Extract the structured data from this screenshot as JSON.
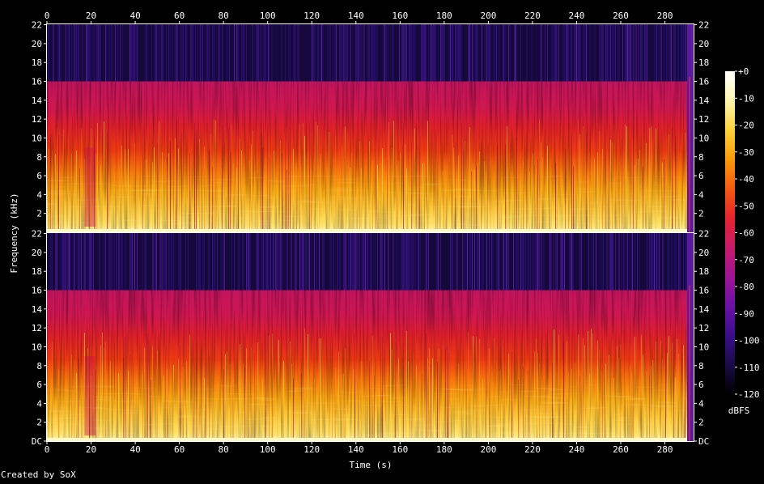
{
  "chart_data": {
    "type": "heatmap",
    "title": "",
    "xlabel": "Time (s)",
    "ylabel": "Frequency (kHz)",
    "xlim": [
      0,
      293
    ],
    "x_ticks": [
      0,
      20,
      40,
      60,
      80,
      100,
      120,
      140,
      160,
      180,
      200,
      220,
      240,
      260,
      280
    ],
    "channels": [
      {
        "ylim": [
          0,
          22.05
        ],
        "y_ticks": [
          {
            "v": 22,
            "label": "22"
          },
          {
            "v": 20,
            "label": "20"
          },
          {
            "v": 18,
            "label": "18"
          },
          {
            "v": 16,
            "label": "16"
          },
          {
            "v": 14,
            "label": "14"
          },
          {
            "v": 12,
            "label": "12"
          },
          {
            "v": 10,
            "label": "10"
          },
          {
            "v": 8,
            "label": "8"
          },
          {
            "v": 6,
            "label": "6"
          },
          {
            "v": 4,
            "label": "4"
          },
          {
            "v": 2,
            "label": "2"
          }
        ]
      },
      {
        "ylim": [
          0,
          22.05
        ],
        "y_ticks": [
          {
            "v": 22,
            "label": "22"
          },
          {
            "v": 20,
            "label": "20"
          },
          {
            "v": 18,
            "label": "18"
          },
          {
            "v": 16,
            "label": "16"
          },
          {
            "v": 14,
            "label": "14"
          },
          {
            "v": 12,
            "label": "12"
          },
          {
            "v": 10,
            "label": "10"
          },
          {
            "v": 8,
            "label": "8"
          },
          {
            "v": 6,
            "label": "6"
          },
          {
            "v": 4,
            "label": "4"
          },
          {
            "v": 2,
            "label": "2"
          },
          {
            "v": 0,
            "label": "DC"
          }
        ]
      }
    ],
    "cutoff_khz": 16,
    "colorbar": {
      "label": "dBFS",
      "range": [
        -120,
        0
      ],
      "ticks": [
        {
          "v": 0,
          "label": "+0"
        },
        {
          "v": -10,
          "label": "-10"
        },
        {
          "v": -20,
          "label": "-20"
        },
        {
          "v": -30,
          "label": "-30"
        },
        {
          "v": -40,
          "label": "-40"
        },
        {
          "v": -50,
          "label": "-50"
        },
        {
          "v": -60,
          "label": "-60"
        },
        {
          "v": -70,
          "label": "-70"
        },
        {
          "v": -80,
          "label": "-80"
        },
        {
          "v": -90,
          "label": "-90"
        },
        {
          "v": -100,
          "label": "-100"
        },
        {
          "v": -110,
          "label": "-110"
        },
        {
          "v": -120,
          "label": "-120"
        }
      ],
      "colors": [
        "#000000",
        "#1a0c47",
        "#3a0d8a",
        "#6b10a6",
        "#9e1596",
        "#c81a6a",
        "#e6232e",
        "#f55a10",
        "#fb9a0a",
        "#fdd23a",
        "#fff6b0",
        "#ffffff"
      ]
    },
    "credit": "Created by SoX"
  }
}
